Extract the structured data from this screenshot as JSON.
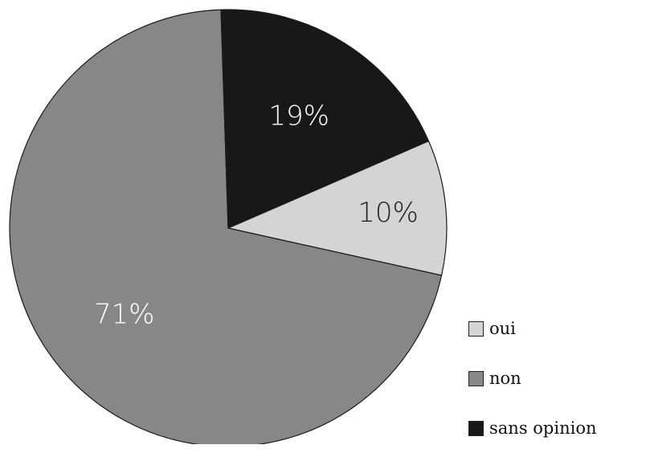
{
  "chart_data": {
    "type": "pie",
    "title": "",
    "slices": [
      {
        "category": "oui",
        "value": 10,
        "label": "10%",
        "color": "#d4d4d4",
        "label_color": "#222222"
      },
      {
        "category": "non",
        "value": 71,
        "label": "71%",
        "color": "#878787",
        "label_color": "#ffffff"
      },
      {
        "category": "sans opinion",
        "value": 19,
        "label": "19%",
        "color": "#1a1719",
        "label_color": "#ffffff"
      }
    ],
    "legend_position": "bottom-right",
    "legend": [
      {
        "label": "oui",
        "color": "#d4d4d4"
      },
      {
        "label": "non",
        "color": "#878787"
      },
      {
        "label": "sans opinion",
        "color": "#1a1719"
      }
    ]
  }
}
